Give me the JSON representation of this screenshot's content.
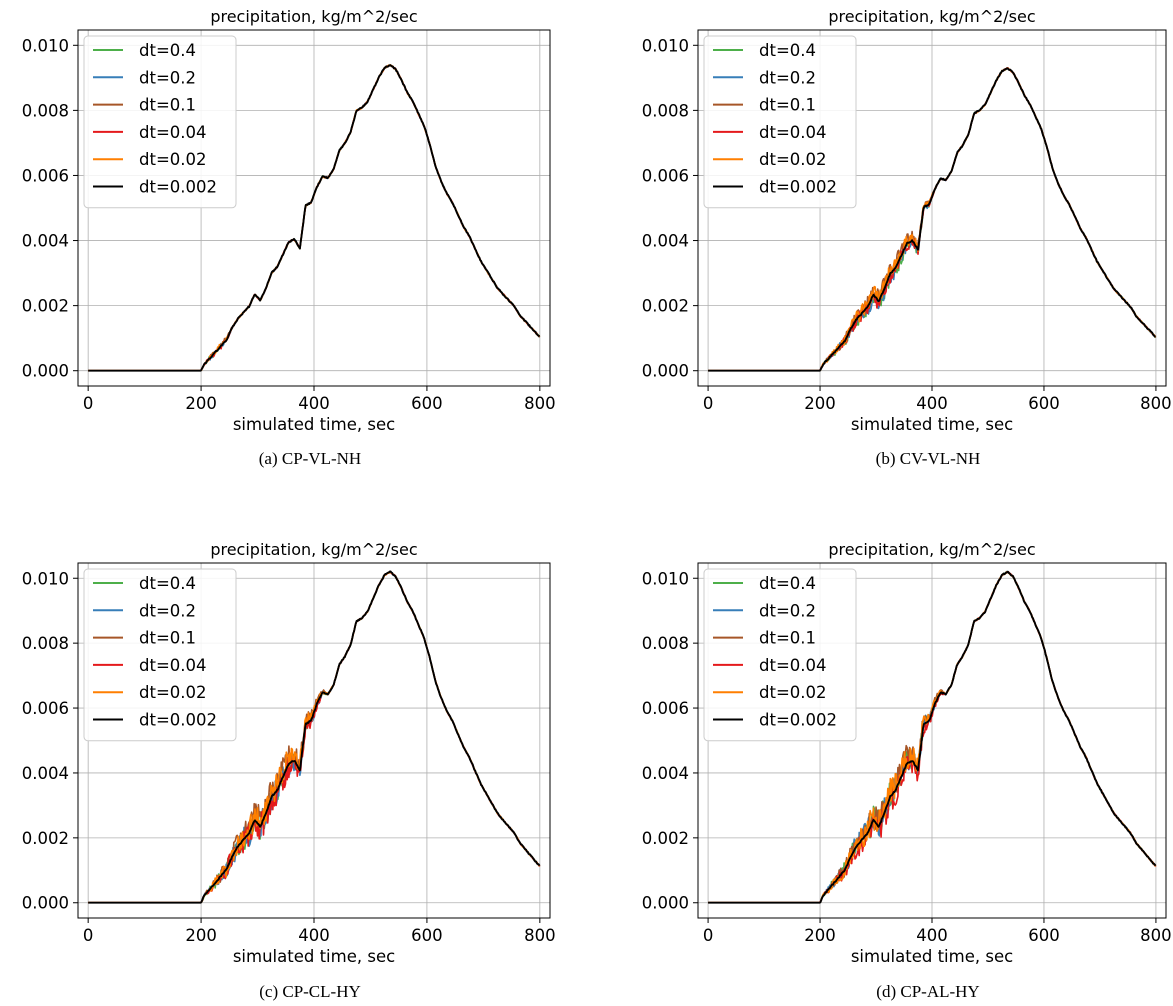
{
  "chart_data": [
    {
      "type": "line",
      "caption": "(a) CP-VL-NH",
      "title": "precipitation, kg/m^2/sec",
      "xlabel": "simulated time, sec",
      "ylabel": "",
      "xlim": [
        -18,
        818
      ],
      "ylim": [
        -0.00047,
        0.01047
      ],
      "xticks": [
        "0",
        "200",
        "400",
        "600",
        "800"
      ],
      "yticks": [
        "0.000",
        "0.002",
        "0.004",
        "0.006",
        "0.008",
        "0.010"
      ],
      "grid": true,
      "legend_position": "upper-left",
      "peak": 0.0094,
      "spread_end": 260,
      "spread_amp": 0.0001,
      "series": [
        {
          "name": "dt=0.4",
          "color": "#4daf4a"
        },
        {
          "name": "dt=0.2",
          "color": "#377eb8"
        },
        {
          "name": "dt=0.1",
          "color": "#a65628"
        },
        {
          "name": "dt=0.04",
          "color": "#e41a1c"
        },
        {
          "name": "dt=0.02",
          "color": "#ff7f00"
        },
        {
          "name": "dt=0.002",
          "color": "#000000"
        }
      ]
    },
    {
      "type": "line",
      "caption": "(b) CV-VL-NH",
      "title": "precipitation, kg/m^2/sec",
      "xlabel": "simulated time, sec",
      "ylabel": "",
      "xlim": [
        -18,
        818
      ],
      "ylim": [
        -0.00047,
        0.01047
      ],
      "xticks": [
        "0",
        "200",
        "400",
        "600",
        "800"
      ],
      "yticks": [
        "0.000",
        "0.002",
        "0.004",
        "0.006",
        "0.008",
        "0.010"
      ],
      "grid": true,
      "legend_position": "upper-left",
      "peak": 0.0093,
      "spread_end": 410,
      "spread_amp": 0.00035,
      "series": [
        {
          "name": "dt=0.4",
          "color": "#4daf4a"
        },
        {
          "name": "dt=0.2",
          "color": "#377eb8"
        },
        {
          "name": "dt=0.1",
          "color": "#a65628"
        },
        {
          "name": "dt=0.04",
          "color": "#e41a1c"
        },
        {
          "name": "dt=0.02",
          "color": "#ff7f00"
        },
        {
          "name": "dt=0.002",
          "color": "#000000"
        }
      ]
    },
    {
      "type": "line",
      "caption": "(c) CP-CL-HY",
      "title": "precipitation, kg/m^2/sec",
      "xlabel": "simulated time, sec",
      "ylabel": "",
      "xlim": [
        -18,
        818
      ],
      "ylim": [
        -0.00047,
        0.01047
      ],
      "xticks": [
        "0",
        "200",
        "400",
        "600",
        "800"
      ],
      "yticks": [
        "0.000",
        "0.002",
        "0.004",
        "0.006",
        "0.008",
        "0.010"
      ],
      "grid": true,
      "legend_position": "upper-left",
      "peak": 0.0102,
      "spread_end": 425,
      "spread_amp": 0.0006,
      "series": [
        {
          "name": "dt=0.4",
          "color": "#4daf4a"
        },
        {
          "name": "dt=0.2",
          "color": "#377eb8"
        },
        {
          "name": "dt=0.1",
          "color": "#a65628"
        },
        {
          "name": "dt=0.04",
          "color": "#e41a1c"
        },
        {
          "name": "dt=0.02",
          "color": "#ff7f00"
        },
        {
          "name": "dt=0.002",
          "color": "#000000"
        }
      ]
    },
    {
      "type": "line",
      "caption": "(d) CP-AL-HY",
      "title": "precipitation, kg/m^2/sec",
      "xlabel": "simulated time, sec",
      "ylabel": "",
      "xlim": [
        -18,
        818
      ],
      "ylim": [
        -0.00047,
        0.01047
      ],
      "xticks": [
        "0",
        "200",
        "400",
        "600",
        "800"
      ],
      "yticks": [
        "0.000",
        "0.002",
        "0.004",
        "0.006",
        "0.008",
        "0.010"
      ],
      "grid": true,
      "legend_position": "upper-left",
      "peak": 0.0102,
      "spread_end": 425,
      "spread_amp": 0.0006,
      "series": [
        {
          "name": "dt=0.4",
          "color": "#4daf4a"
        },
        {
          "name": "dt=0.2",
          "color": "#377eb8"
        },
        {
          "name": "dt=0.1",
          "color": "#a65628"
        },
        {
          "name": "dt=0.04",
          "color": "#e41a1c"
        },
        {
          "name": "dt=0.02",
          "color": "#ff7f00"
        },
        {
          "name": "dt=0.002",
          "color": "#000000"
        }
      ]
    }
  ]
}
